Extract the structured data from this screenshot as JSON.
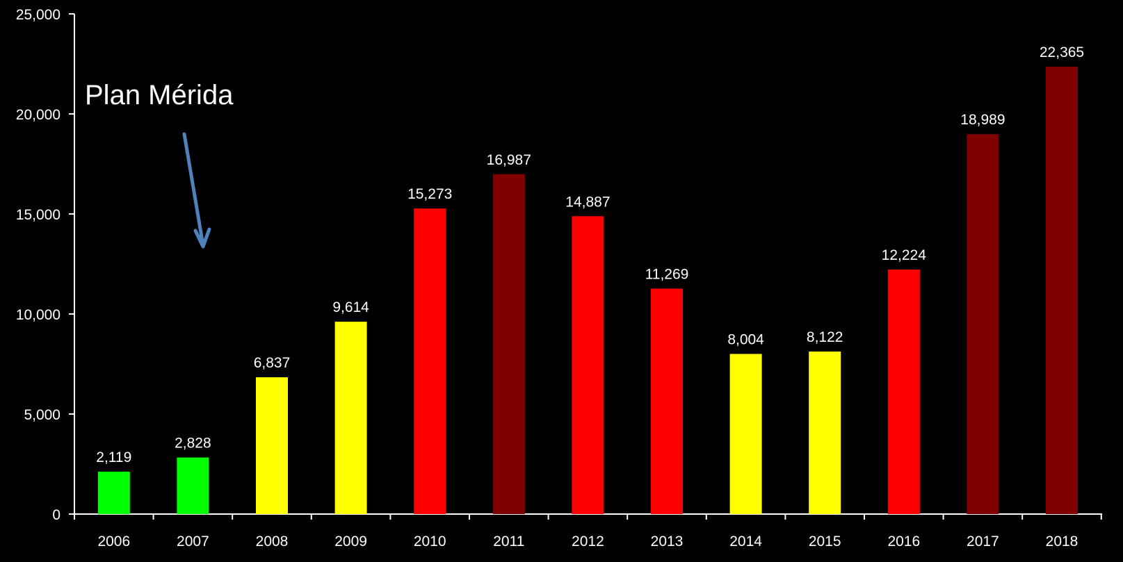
{
  "chart_data": {
    "type": "bar",
    "title": "",
    "xlabel": "",
    "ylabel": "",
    "ylim": [
      0,
      25000
    ],
    "y_ticks": [
      0,
      5000,
      10000,
      15000,
      20000,
      25000
    ],
    "y_tick_labels": [
      "0",
      "5,000",
      "10,000",
      "15,000",
      "20,000",
      "25,000"
    ],
    "grid": false,
    "legend": "none",
    "categories": [
      "2006",
      "2007",
      "2008",
      "2009",
      "2010",
      "2011",
      "2012",
      "2013",
      "2014",
      "2015",
      "2016",
      "2017",
      "2018"
    ],
    "values": [
      2119,
      2828,
      6837,
      9614,
      15273,
      16987,
      14887,
      11269,
      8004,
      8122,
      12224,
      18989,
      22365
    ],
    "value_labels": [
      "2,119",
      "2,828",
      "6,837",
      "9,614",
      "15,273",
      "16,987",
      "14,887",
      "11,269",
      "8,004",
      "8,122",
      "12,224",
      "18,989",
      "22,365"
    ],
    "bar_colors": [
      "#00ff00",
      "#00ff00",
      "#ffff00",
      "#ffff00",
      "#ff0000",
      "#800000",
      "#ff0000",
      "#ff0000",
      "#ffff00",
      "#ffff00",
      "#ff0000",
      "#800000",
      "#800000"
    ],
    "annotation": {
      "text": "Plan Mérida",
      "arrow_color": "#4f81bd",
      "points_to_category": "2007"
    }
  },
  "colors": {
    "background": "#000000",
    "axis": "#ffffff",
    "text": "#ffffff"
  }
}
